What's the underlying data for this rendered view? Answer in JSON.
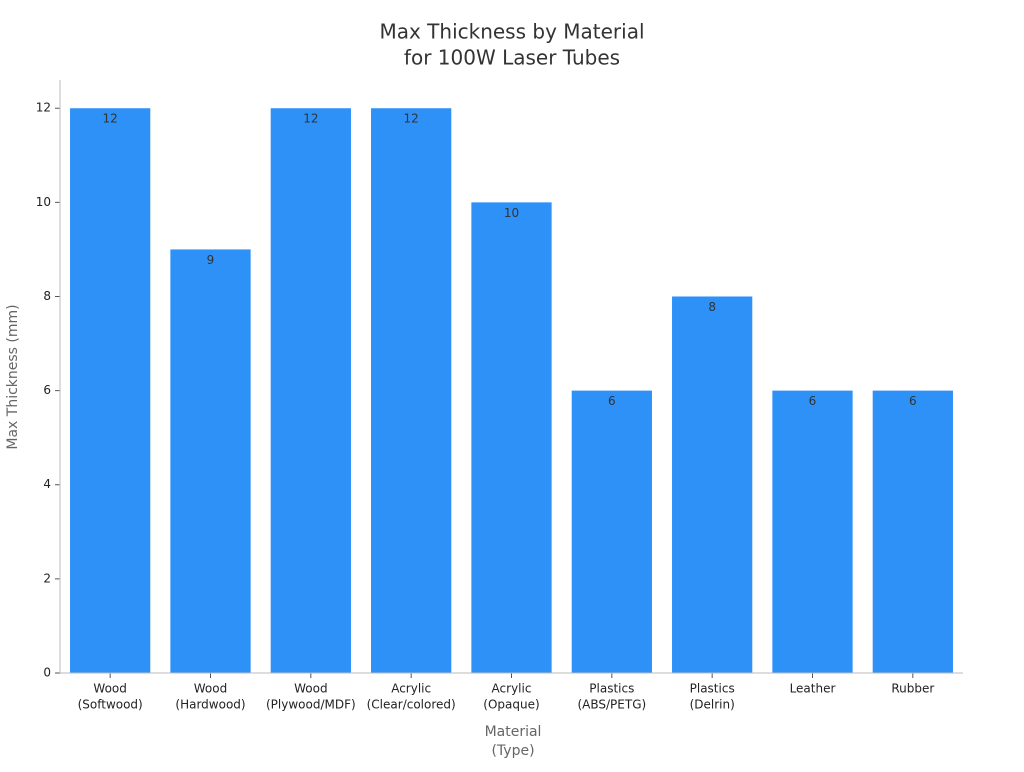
{
  "chart_data": {
    "type": "bar",
    "title": [
      "Max Thickness by Material",
      "for 100W Laser Tubes"
    ],
    "x_label": [
      "Material",
      "(Type)"
    ],
    "y_label": "Max Thickness (mm)",
    "categories": [
      [
        "Wood",
        "(Softwood)"
      ],
      [
        "Wood",
        "(Hardwood)"
      ],
      [
        "Wood",
        "(Plywood/MDF)"
      ],
      [
        "Acrylic",
        "(Clear/colored)"
      ],
      [
        "Acrylic",
        "(Opaque)"
      ],
      [
        "Plastics",
        "(ABS/PETG)"
      ],
      [
        "Plastics",
        "(Delrin)"
      ],
      [
        "Leather"
      ],
      [
        "Rubber"
      ]
    ],
    "values": [
      12,
      9,
      12,
      12,
      10,
      6,
      8,
      6,
      6
    ],
    "color": "#2e91f7",
    "ylim": [
      0,
      12.6
    ],
    "yticks": [
      0,
      2,
      4,
      6,
      8,
      10,
      12
    ],
    "grid": false
  }
}
